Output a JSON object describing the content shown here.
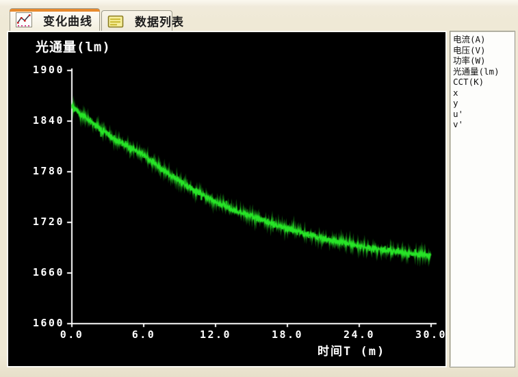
{
  "colors": {
    "accent_orange": "#e78a2e",
    "curve_green": "#27e427",
    "chart_bg": "#000000",
    "axis_white": "#ffffff",
    "window_beige": "#efe9d6"
  },
  "tabs": [
    {
      "label": "变化曲线",
      "icon": "curve-chart-icon",
      "active": true
    },
    {
      "label": "数据列表",
      "icon": "data-list-icon",
      "active": false
    }
  ],
  "legend": {
    "items": [
      "电流(A)",
      "电压(V)",
      "功率(W)",
      "光通量(lm)",
      "CCT(K)",
      "x",
      "y",
      "u'",
      "v'"
    ]
  },
  "chart_data": {
    "type": "line",
    "title": "光通量(lm)",
    "xlabel": "时间T (m)",
    "ylabel": "光通量(lm)",
    "xlim": [
      0,
      30
    ],
    "ylim": [
      1600,
      1900
    ],
    "x_ticks": [
      0,
      6,
      12,
      18,
      24,
      30
    ],
    "x_tick_labels": [
      "0.0",
      "6.0",
      "12.0",
      "18.0",
      "24.0",
      "30.0"
    ],
    "y_ticks": [
      1900,
      1840,
      1780,
      1720,
      1660,
      1600
    ],
    "y_tick_labels": [
      "1900",
      "1840",
      "1780",
      "1720",
      "1660",
      "1600"
    ],
    "grid": false,
    "legend_position": "right-panel",
    "series": [
      {
        "name": "光通量(lm)",
        "color": "#27e427",
        "noise_amplitude": 4.2,
        "x": [
          0,
          1,
          2,
          3,
          4,
          5,
          6,
          7,
          8,
          9,
          10,
          11,
          12,
          13,
          14,
          15,
          16,
          17,
          18,
          19,
          20,
          21,
          22,
          23,
          24,
          25,
          26,
          27,
          28,
          29,
          30
        ],
        "values": [
          1857,
          1846,
          1835,
          1824,
          1815,
          1807,
          1800,
          1789,
          1778,
          1769,
          1760,
          1752,
          1744,
          1738,
          1732,
          1727,
          1722,
          1717,
          1713,
          1709,
          1705,
          1701,
          1698,
          1695,
          1692,
          1689,
          1687,
          1685,
          1683,
          1682,
          1681
        ]
      }
    ]
  }
}
